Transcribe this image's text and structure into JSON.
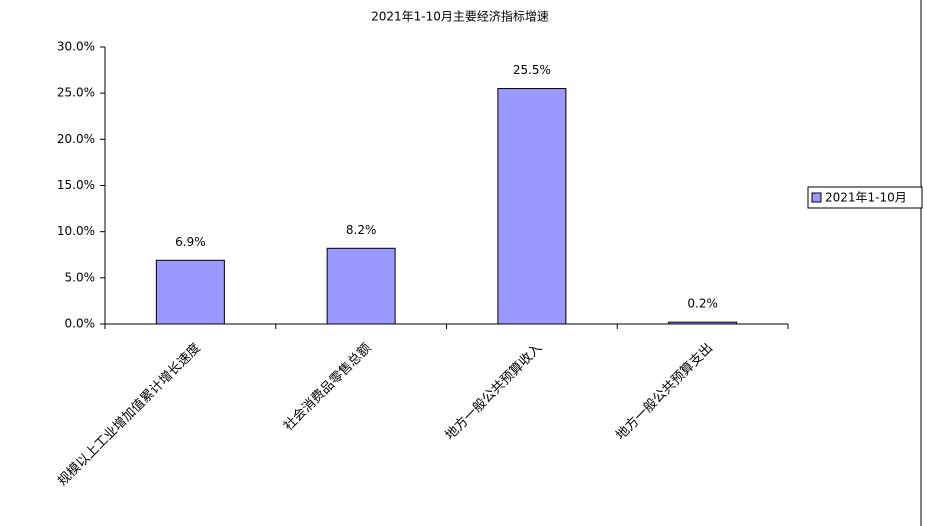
{
  "chart_data": {
    "type": "bar",
    "title": "2021年1-10月主要经济指标增速",
    "categories": [
      "规模以上工业增加值累计增长速度",
      "社会消费品零售总额",
      "地方一般公共预算收入",
      "地方一般公共预算支出"
    ],
    "series": [
      {
        "name": "2021年1-10月",
        "color": "#9999ff",
        "values": [
          6.9,
          8.2,
          25.5,
          0.2
        ],
        "value_labels": [
          "6.9%",
          "8.2%",
          "25.5%",
          "0.2%"
        ]
      }
    ],
    "ylim": [
      0,
      30
    ],
    "yticks": [
      {
        "value": 0,
        "label": "0.0%"
      },
      {
        "value": 5,
        "label": "5.0%"
      },
      {
        "value": 10,
        "label": "10.0%"
      },
      {
        "value": 15,
        "label": "15.0%"
      },
      {
        "value": 20,
        "label": "20.0%"
      },
      {
        "value": 25,
        "label": "25.0%"
      },
      {
        "value": 30,
        "label": "30.0%"
      }
    ],
    "grid": false,
    "legend": "right"
  }
}
